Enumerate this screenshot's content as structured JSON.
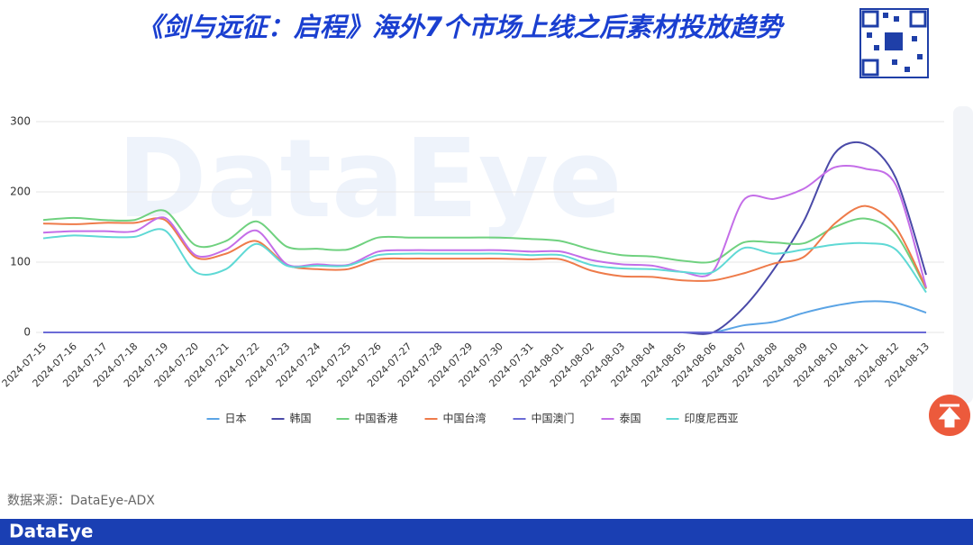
{
  "chart_data": {
    "type": "line",
    "title": "《剑与远征：启程》海外7个市场上线之后素材投放趋势",
    "source": "数据来源：DataEye-ADX",
    "brand": "DataEye",
    "categories": [
      "2024-07-15",
      "2024-07-16",
      "2024-07-17",
      "2024-07-18",
      "2024-07-19",
      "2024-07-20",
      "2024-07-21",
      "2024-07-22",
      "2024-07-23",
      "2024-07-24",
      "2024-07-25",
      "2024-07-26",
      "2024-07-27",
      "2024-07-28",
      "2024-07-29",
      "2024-07-30",
      "2024-07-31",
      "2024-08-01",
      "2024-08-02",
      "2024-08-03",
      "2024-08-04",
      "2024-08-05",
      "2024-08-06",
      "2024-08-07",
      "2024-08-08",
      "2024-08-09",
      "2024-08-10",
      "2024-08-11",
      "2024-08-12",
      "2024-08-13"
    ],
    "ylim": [
      0,
      300
    ],
    "yticks": [
      0,
      100,
      200,
      300
    ],
    "grid": true,
    "series": [
      {
        "name": "日本",
        "color": "#5ba4e5",
        "values": [
          0,
          0,
          0,
          0,
          0,
          0,
          0,
          0,
          0,
          0,
          0,
          0,
          0,
          0,
          0,
          0,
          0,
          0,
          0,
          0,
          0,
          0,
          0,
          10,
          15,
          28,
          38,
          44,
          42,
          28
        ]
      },
      {
        "name": "韩国",
        "color": "#4a4aa8",
        "values": [
          0,
          0,
          0,
          0,
          0,
          0,
          0,
          0,
          0,
          0,
          0,
          0,
          0,
          0,
          0,
          0,
          0,
          0,
          0,
          0,
          0,
          0,
          0,
          35,
          90,
          160,
          255,
          268,
          220,
          82
        ]
      },
      {
        "name": "中国香港",
        "color": "#6fd17f",
        "values": [
          160,
          163,
          160,
          160,
          173,
          124,
          130,
          158,
          122,
          119,
          118,
          135,
          135,
          135,
          135,
          135,
          133,
          130,
          118,
          110,
          108,
          102,
          101,
          128,
          128,
          127,
          150,
          162,
          140,
          62
        ]
      },
      {
        "name": "中国台湾",
        "color": "#ee7b4a",
        "values": [
          155,
          154,
          156,
          156,
          160,
          107,
          112,
          130,
          96,
          90,
          90,
          104,
          105,
          105,
          105,
          105,
          104,
          104,
          88,
          80,
          79,
          74,
          74,
          84,
          98,
          108,
          155,
          180,
          150,
          63
        ]
      },
      {
        "name": "中国澳门",
        "color": "#6b6bd6",
        "values": [
          0,
          0,
          0,
          0,
          0,
          0,
          0,
          0,
          0,
          0,
          0,
          0,
          0,
          0,
          0,
          0,
          0,
          0,
          0,
          0,
          0,
          0,
          0,
          0,
          0,
          0,
          0,
          0,
          0,
          0
        ]
      },
      {
        "name": "泰国",
        "color": "#c46ee8",
        "values": [
          142,
          144,
          144,
          144,
          163,
          110,
          118,
          145,
          97,
          97,
          96,
          115,
          117,
          117,
          117,
          117,
          115,
          115,
          103,
          97,
          95,
          86,
          87,
          188,
          190,
          205,
          235,
          233,
          210,
          64
        ]
      },
      {
        "name": "印度尼西亚",
        "color": "#5fd9d5",
        "values": [
          134,
          138,
          136,
          136,
          145,
          86,
          90,
          126,
          95,
          95,
          95,
          110,
          112,
          112,
          112,
          112,
          110,
          110,
          96,
          91,
          90,
          86,
          86,
          120,
          112,
          118,
          125,
          127,
          118,
          57
        ]
      }
    ]
  }
}
